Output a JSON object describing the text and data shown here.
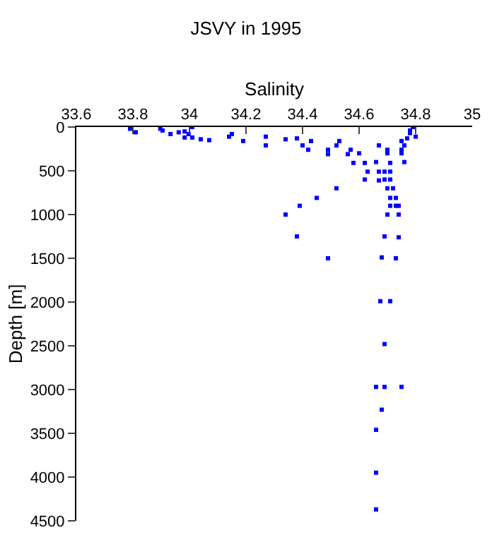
{
  "chart_data": {
    "type": "scatter",
    "title": "JSVY in 1995",
    "xlabel": "Salinity",
    "ylabel": "Depth [m]",
    "x": [
      33.79,
      33.81,
      33.897,
      33.905,
      33.933,
      33.962,
      33.983,
      33.983,
      33.997,
      34.01,
      34.01,
      34.04,
      34.07,
      34.14,
      34.15,
      34.19,
      34.27,
      34.27,
      34.34,
      34.38,
      34.4,
      34.42,
      34.43,
      34.49,
      34.49,
      34.52,
      34.53,
      34.56,
      34.57,
      34.6,
      34.58,
      34.62,
      34.66,
      34.63,
      34.62,
      34.67,
      34.69,
      34.71,
      34.67,
      34.7,
      34.7,
      34.71,
      34.67,
      34.69,
      34.71,
      34.75,
      34.75,
      34.75,
      34.76,
      34.76,
      34.77,
      34.78,
      34.78,
      34.79,
      34.8,
      34.52,
      34.7,
      34.72,
      34.45,
      34.71,
      34.73,
      34.39,
      34.71,
      34.73,
      34.74,
      34.34,
      34.7,
      34.74,
      34.38,
      34.69,
      34.74,
      34.49,
      34.68,
      34.73,
      34.675,
      34.71,
      34.69,
      34.66,
      34.69,
      34.75,
      34.68,
      34.66,
      34.66,
      34.66
    ],
    "series": [
      {
        "color": "#0000ff",
        "values": [
          20,
          60,
          20,
          40,
          80,
          60,
          50,
          120,
          80,
          0,
          120,
          140,
          150,
          110,
          80,
          160,
          110,
          210,
          140,
          130,
          210,
          260,
          160,
          260,
          310,
          210,
          160,
          310,
          260,
          300,
          410,
          410,
          400,
          510,
          600,
          510,
          510,
          510,
          210,
          260,
          300,
          410,
          610,
          600,
          600,
          260,
          300,
          160,
          210,
          400,
          130,
          40,
          70,
          0,
          110,
          700,
          700,
          700,
          810,
          810,
          810,
          900,
          900,
          900,
          900,
          1000,
          1000,
          1000,
          1250,
          1250,
          1260,
          1500,
          1490,
          1500,
          1990,
          1990,
          2480,
          2970,
          2970,
          2970,
          3230,
          3460,
          3950,
          4370
        ]
      }
    ],
    "xlim": [
      33.6,
      35
    ],
    "xticks": [
      33.6,
      33.8,
      34,
      34.2,
      34.4,
      34.6,
      34.8,
      35
    ],
    "ylim": [
      4500,
      0
    ],
    "yticks": [
      0,
      500,
      1000,
      1500,
      2000,
      2500,
      3000,
      3500,
      4000,
      4500
    ],
    "marker": "square"
  }
}
